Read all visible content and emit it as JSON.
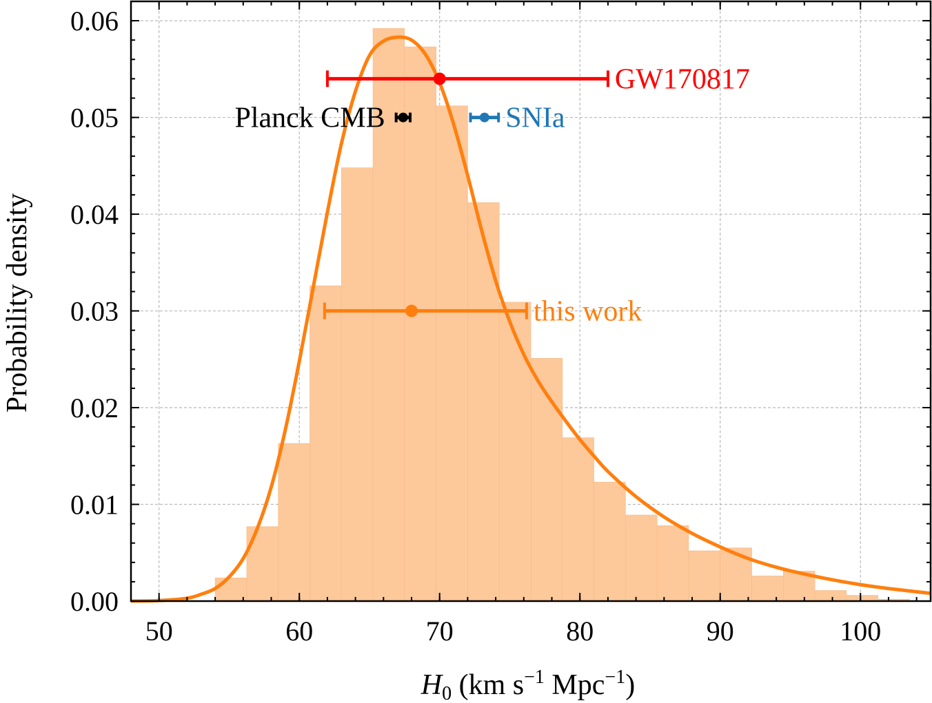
{
  "chart_data": {
    "type": "histogram",
    "xlabel_symbol": "H",
    "xlabel_sub": "0",
    "xlabel_units_a": " (km s",
    "xlabel_sup_a": "−1",
    "xlabel_units_b": " Mpc",
    "xlabel_sup_b": "−1",
    "xlabel_close": ")",
    "ylabel": "Probability density",
    "xlim": [
      48,
      105
    ],
    "ylim": [
      0,
      0.062
    ],
    "xticks": [
      50,
      60,
      70,
      80,
      90,
      100
    ],
    "xtick_labels": [
      "50",
      "60",
      "70",
      "80",
      "90",
      "100"
    ],
    "yticks": [
      0,
      0.01,
      0.02,
      0.03,
      0.04,
      0.05,
      0.06
    ],
    "ytick_labels": [
      "0.00",
      "0.01",
      "0.02",
      "0.03",
      "0.04",
      "0.05",
      "0.06"
    ],
    "grid": true,
    "histogram": {
      "bin_edges": [
        54,
        56.25,
        58.5,
        60.75,
        63,
        65.25,
        67.5,
        69.75,
        72,
        74.25,
        76.5,
        78.75,
        81,
        83.25,
        85.5,
        87.75,
        90,
        92.25,
        94.5,
        96.75,
        99,
        101.25,
        103.5
      ],
      "densities": [
        0.0024,
        0.0077,
        0.0163,
        0.0326,
        0.0448,
        0.0592,
        0.0573,
        0.0512,
        0.0412,
        0.0309,
        0.0251,
        0.0169,
        0.0123,
        0.0089,
        0.0078,
        0.0052,
        0.0055,
        0.0026,
        0.0031,
        0.0011,
        0.0006,
        0.0002
      ],
      "color": "#fdc89a"
    },
    "curve": {
      "x": [
        48,
        50,
        52,
        53,
        54,
        55,
        56,
        57,
        58,
        59,
        60,
        61,
        62,
        63,
        64,
        65,
        66,
        67,
        68,
        69,
        70,
        71,
        72,
        73,
        74,
        75,
        76,
        77,
        78,
        79,
        80,
        81,
        82,
        84,
        86,
        88,
        90,
        92,
        94,
        96,
        98,
        100,
        102,
        105
      ],
      "y": [
        0,
        5e-05,
        0.0003,
        0.0007,
        0.0013,
        0.0025,
        0.0044,
        0.0075,
        0.0118,
        0.0177,
        0.0248,
        0.0325,
        0.0402,
        0.0473,
        0.0527,
        0.0564,
        0.0579,
        0.0583,
        0.058,
        0.0565,
        0.0536,
        0.0493,
        0.044,
        0.0383,
        0.0331,
        0.0289,
        0.0255,
        0.0228,
        0.0206,
        0.0186,
        0.0167,
        0.015,
        0.0134,
        0.0108,
        0.0087,
        0.007,
        0.0056,
        0.0044,
        0.0035,
        0.0028,
        0.0022,
        0.0017,
        0.0013,
        0.0008
      ],
      "color": "#ff7f0e"
    },
    "measurements": [
      {
        "label": "GW170817",
        "value": 70.0,
        "low": 62.0,
        "high": 82.0,
        "y": 0.054,
        "color": "#ff0000",
        "label_side": "right"
      },
      {
        "label": "Planck CMB",
        "value": 67.4,
        "low": 66.9,
        "high": 67.9,
        "y": 0.05,
        "color": "#000000",
        "label_side": "left"
      },
      {
        "label": "SNIa",
        "value": 73.2,
        "low": 72.2,
        "high": 74.2,
        "y": 0.05,
        "color": "#1f77b4",
        "label_side": "right"
      },
      {
        "label": "this work",
        "value": 68.0,
        "low": 61.8,
        "high": 76.2,
        "y": 0.03,
        "color": "#ff7f0e",
        "label_side": "right"
      }
    ]
  }
}
